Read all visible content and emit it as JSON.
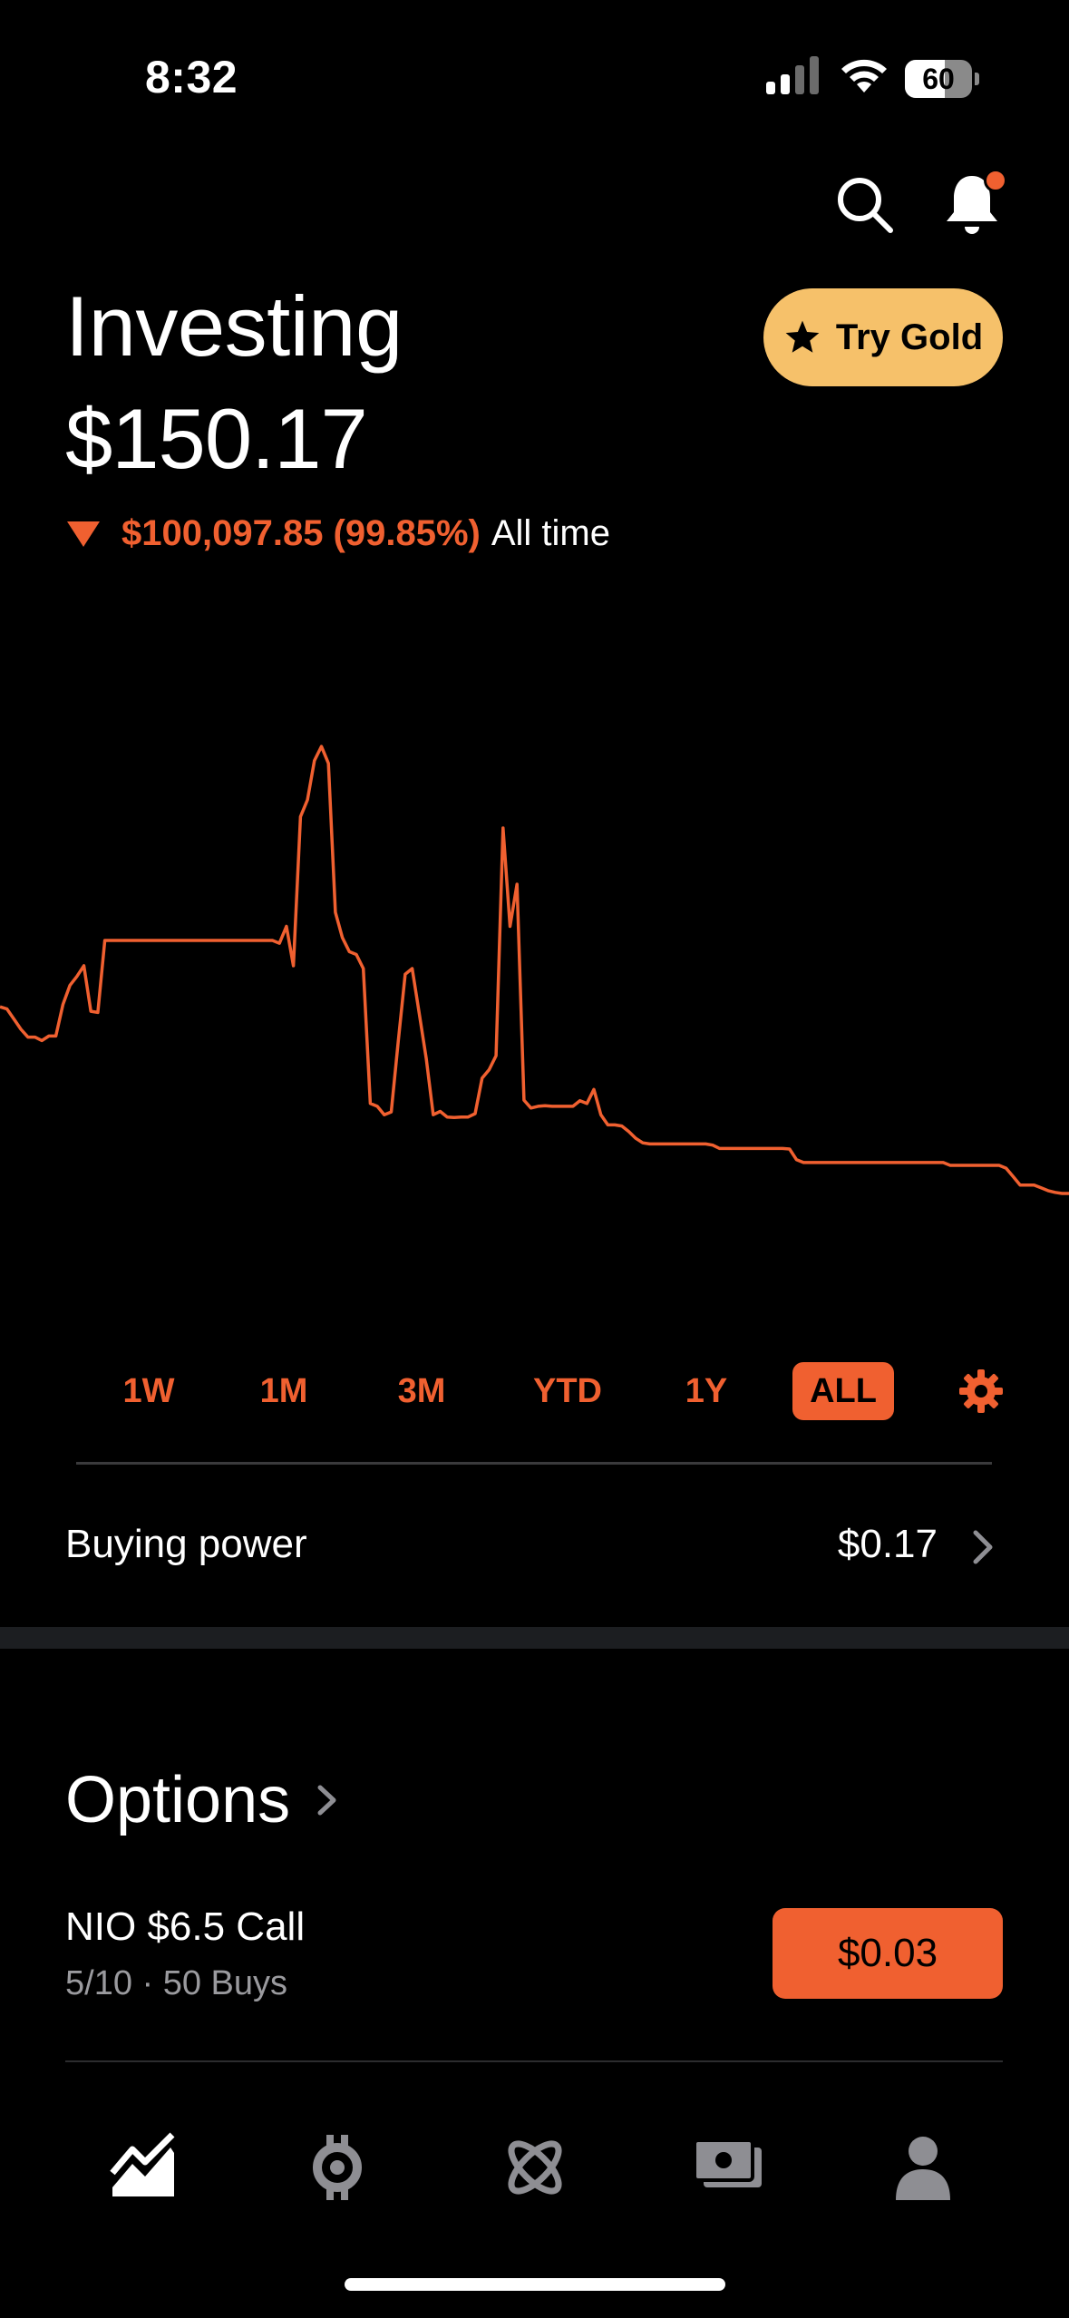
{
  "status_bar": {
    "time": "8:32",
    "battery_level": "60",
    "battery_fraction": 0.6
  },
  "header": {
    "title": "Investing",
    "portfolio_value": "$150.17",
    "change_amount": "$100,097.85 (99.85%)",
    "change_period": "All time",
    "change_direction": "down",
    "gold_button_label": "Try Gold",
    "has_notification": true
  },
  "colors": {
    "accent": "#f06030",
    "gold": "#f6c16a",
    "background": "#000000",
    "muted_text": "#9a9a9e"
  },
  "chart_data": {
    "type": "line",
    "series_color": "#f06030",
    "y_relative": [
      0.532,
      0.528,
      0.51,
      0.492,
      0.478,
      0.478,
      0.472,
      0.48,
      0.48,
      0.536,
      0.57,
      0.586,
      0.605,
      0.524,
      0.522,
      0.65,
      0.65,
      0.65,
      0.65,
      0.65,
      0.65,
      0.65,
      0.65,
      0.65,
      0.65,
      0.65,
      0.65,
      0.65,
      0.65,
      0.65,
      0.65,
      0.65,
      0.65,
      0.65,
      0.65,
      0.65,
      0.65,
      0.65,
      0.65,
      0.65,
      0.645,
      0.675,
      0.605,
      0.87,
      0.9,
      0.97,
      0.995,
      0.965,
      0.7,
      0.655,
      0.63,
      0.625,
      0.6,
      0.36,
      0.355,
      0.34,
      0.345,
      0.47,
      0.59,
      0.6,
      0.52,
      0.44,
      0.34,
      0.346,
      0.336,
      0.335,
      0.336,
      0.336,
      0.342,
      0.405,
      0.42,
      0.445,
      0.85,
      0.675,
      0.75,
      0.366,
      0.352,
      0.355,
      0.356,
      0.355,
      0.355,
      0.355,
      0.355,
      0.365,
      0.36,
      0.385,
      0.34,
      0.322,
      0.322,
      0.32,
      0.31,
      0.298,
      0.29,
      0.288,
      0.288,
      0.288,
      0.288,
      0.288,
      0.288,
      0.288,
      0.288,
      0.288,
      0.286,
      0.28,
      0.28,
      0.28,
      0.28,
      0.28,
      0.28,
      0.28,
      0.28,
      0.28,
      0.28,
      0.279,
      0.26,
      0.255,
      0.255,
      0.255,
      0.255,
      0.255,
      0.255,
      0.255,
      0.255,
      0.255,
      0.255,
      0.255,
      0.255,
      0.255,
      0.255,
      0.255,
      0.255,
      0.255,
      0.255,
      0.255,
      0.255,
      0.255,
      0.25,
      0.25,
      0.25,
      0.25,
      0.25,
      0.25,
      0.25,
      0.25,
      0.245,
      0.23,
      0.215,
      0.215,
      0.215,
      0.21,
      0.205,
      0.202,
      0.2,
      0.2
    ]
  },
  "ranges": {
    "items": [
      "1W",
      "1M",
      "3M",
      "YTD",
      "1Y",
      "ALL"
    ],
    "active": "ALL"
  },
  "buying_power": {
    "label": "Buying power",
    "value": "$0.17"
  },
  "options": {
    "title": "Options",
    "items": [
      {
        "name": "NIO $6.5 Call",
        "subtitle": "5/10 · 50 Buys",
        "price": "$0.03"
      }
    ]
  },
  "tabs": [
    {
      "name": "investing",
      "icon": "chart-icon",
      "active": true
    },
    {
      "name": "crypto",
      "icon": "crypto-icon",
      "active": false
    },
    {
      "name": "explore",
      "icon": "atom-icon",
      "active": false
    },
    {
      "name": "retirement",
      "icon": "cash-icon",
      "active": false
    },
    {
      "name": "account",
      "icon": "person-icon",
      "active": false
    }
  ]
}
